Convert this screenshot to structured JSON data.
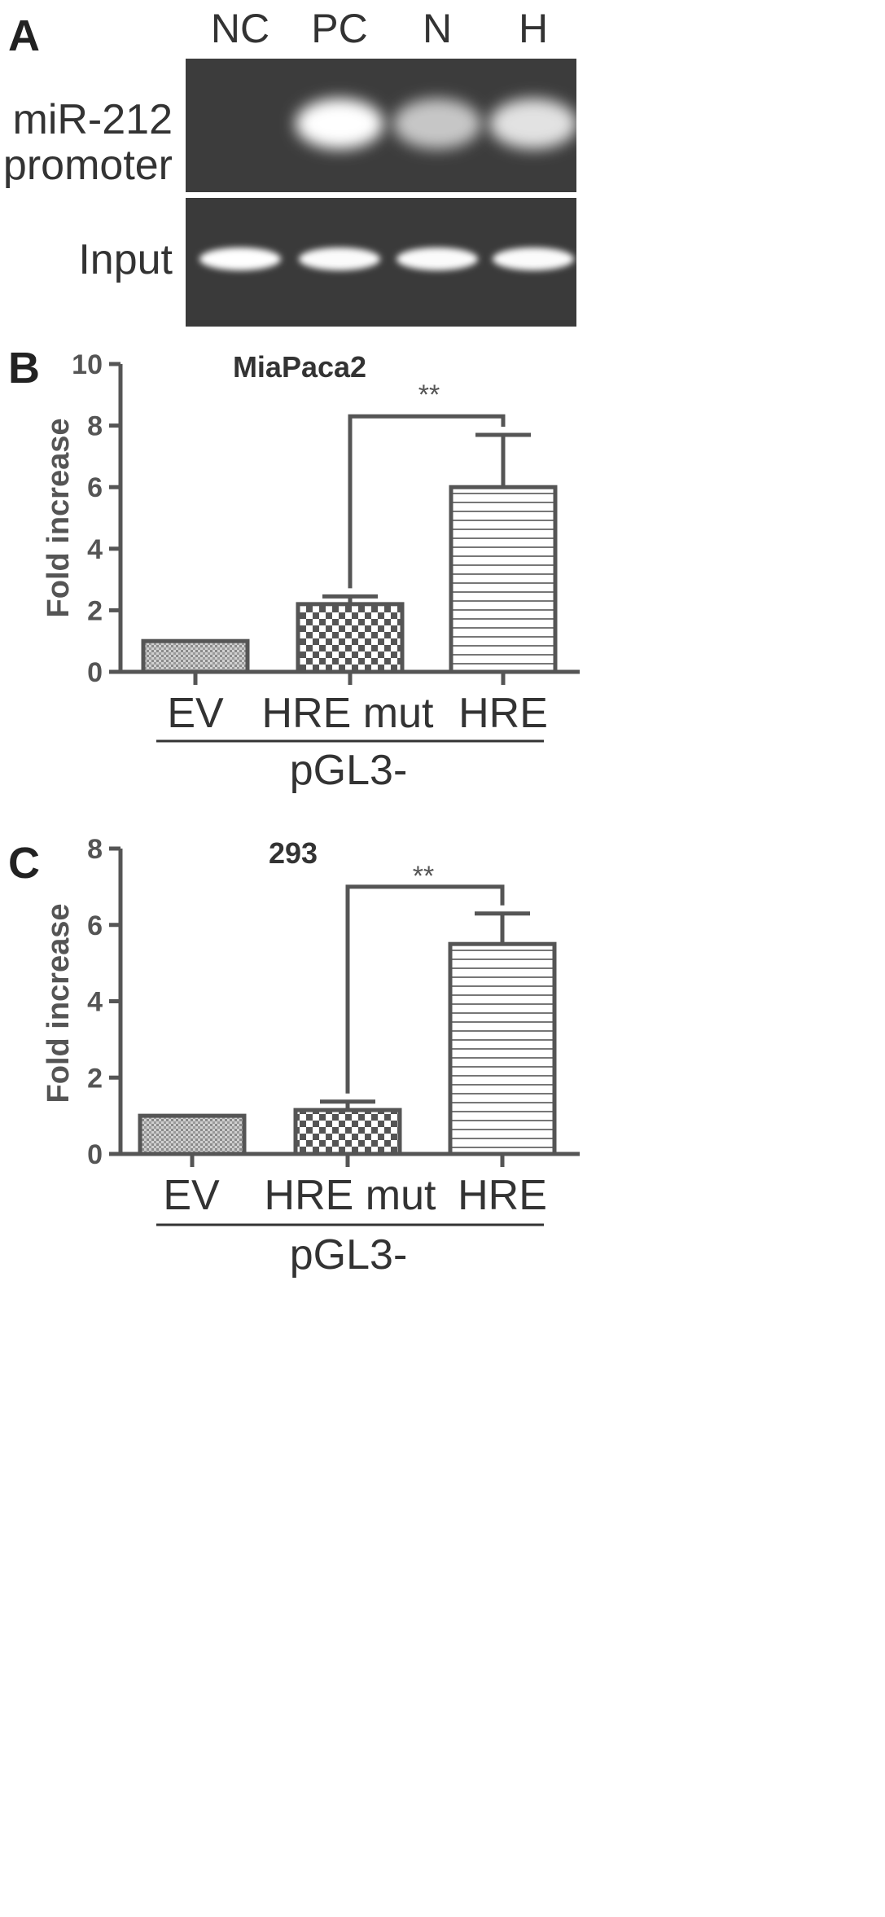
{
  "panel_letters": {
    "a": "A",
    "b": "B",
    "c": "C"
  },
  "gel": {
    "lanes": [
      "NC",
      "PC",
      "N",
      "H"
    ],
    "rows": [
      {
        "label_lines": [
          "miR-212",
          "promoter"
        ],
        "band_intensity": [
          0.0,
          1.0,
          0.62,
          0.8
        ]
      },
      {
        "label_lines": [
          "Input"
        ],
        "band_intensity": [
          1.0,
          0.98,
          0.98,
          0.98
        ]
      }
    ]
  },
  "chart_data": [
    {
      "type": "bar",
      "title": "MiaPaca2",
      "ylabel": "Fold increase",
      "ylim": [
        0,
        10
      ],
      "yticks": [
        "0",
        "2",
        "4",
        "6",
        "8",
        "10"
      ],
      "categories": [
        "EV",
        "HRE mut",
        "HRE"
      ],
      "values": [
        1.0,
        2.2,
        6.0
      ],
      "errors": [
        0,
        0.25,
        1.7
      ],
      "patterns": [
        "dots",
        "checker",
        "hlines"
      ],
      "group_label": "pGL3-",
      "significance": {
        "from": "HRE mut",
        "to": "HRE",
        "label": "**",
        "level": 8.3
      }
    },
    {
      "type": "bar",
      "title": "293",
      "ylabel": "Fold increase",
      "ylim": [
        0,
        8
      ],
      "yticks": [
        "0",
        "2",
        "4",
        "6",
        "8"
      ],
      "categories": [
        "EV",
        "HRE mut",
        "HRE"
      ],
      "values": [
        1.0,
        1.15,
        5.5
      ],
      "errors": [
        0,
        0.22,
        0.8
      ],
      "patterns": [
        "dots",
        "checker",
        "hlines"
      ],
      "group_label": "pGL3-",
      "significance": {
        "from": "HRE mut",
        "to": "HRE",
        "label": "**",
        "level": 7.0
      }
    }
  ]
}
